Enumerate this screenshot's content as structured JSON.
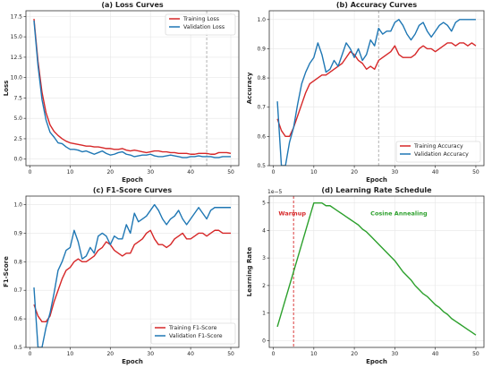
{
  "chart_data": [
    {
      "type": "line",
      "title": "(a) Loss Curves",
      "xlabel": "Epoch",
      "ylabel": "Loss",
      "xlim": [
        -1,
        52
      ],
      "ylim": [
        -0.8,
        18.2
      ],
      "xticks": [
        0,
        10,
        20,
        30,
        40,
        50
      ],
      "yticks": [
        0.0,
        2.5,
        5.0,
        7.5,
        10.0,
        12.5,
        15.0,
        17.5
      ],
      "ytick_decimals": 1,
      "grid": true,
      "legend_position": "top-right",
      "vline": 44,
      "x": [
        1,
        2,
        3,
        4,
        5,
        6,
        7,
        8,
        9,
        10,
        11,
        12,
        13,
        14,
        15,
        16,
        17,
        18,
        19,
        20,
        21,
        22,
        23,
        24,
        25,
        26,
        27,
        28,
        29,
        30,
        31,
        32,
        33,
        34,
        35,
        36,
        37,
        38,
        39,
        40,
        41,
        42,
        43,
        44,
        45,
        46,
        47,
        48,
        49,
        50
      ],
      "series": [
        {
          "name": "Training Loss",
          "color": "#d62728",
          "values": [
            17.2,
            12.0,
            8.2,
            5.7,
            4.2,
            3.4,
            2.9,
            2.5,
            2.2,
            2.0,
            1.9,
            1.8,
            1.7,
            1.6,
            1.6,
            1.5,
            1.5,
            1.4,
            1.3,
            1.3,
            1.2,
            1.2,
            1.3,
            1.1,
            1.0,
            1.1,
            1.0,
            0.9,
            0.8,
            0.9,
            1.0,
            1.0,
            0.9,
            0.9,
            0.8,
            0.8,
            0.7,
            0.7,
            0.7,
            0.6,
            0.6,
            0.7,
            0.7,
            0.7,
            0.6,
            0.6,
            0.8,
            0.8,
            0.8,
            0.7
          ]
        },
        {
          "name": "Validation Loss",
          "color": "#1f77b4",
          "values": [
            17.0,
            11.5,
            7.3,
            4.8,
            3.3,
            2.7,
            2.0,
            1.9,
            1.5,
            1.2,
            1.2,
            1.1,
            0.9,
            1.0,
            0.8,
            0.6,
            0.8,
            1.0,
            0.7,
            0.5,
            0.6,
            0.8,
            0.9,
            0.6,
            0.5,
            0.3,
            0.4,
            0.5,
            0.5,
            0.6,
            0.4,
            0.3,
            0.3,
            0.4,
            0.5,
            0.4,
            0.3,
            0.2,
            0.2,
            0.3,
            0.3,
            0.4,
            0.3,
            0.3,
            0.3,
            0.2,
            0.2,
            0.3,
            0.3,
            0.3
          ]
        }
      ]
    },
    {
      "type": "line",
      "title": "(b) Accuracy Curves",
      "xlabel": "Epoch",
      "ylabel": "Accuracy",
      "xlim": [
        -1,
        52
      ],
      "ylim": [
        0.5,
        1.03
      ],
      "xticks": [
        0,
        10,
        20,
        30,
        40,
        50
      ],
      "yticks": [
        0.5,
        0.6,
        0.7,
        0.8,
        0.9,
        1.0
      ],
      "ytick_decimals": 1,
      "grid": true,
      "legend_position": "bottom-right",
      "vline": 26,
      "x": [
        1,
        2,
        3,
        4,
        5,
        6,
        7,
        8,
        9,
        10,
        11,
        12,
        13,
        14,
        15,
        16,
        17,
        18,
        19,
        20,
        21,
        22,
        23,
        24,
        25,
        26,
        27,
        28,
        29,
        30,
        31,
        32,
        33,
        34,
        35,
        36,
        37,
        38,
        39,
        40,
        41,
        42,
        43,
        44,
        45,
        46,
        47,
        48,
        49,
        50
      ],
      "series": [
        {
          "name": "Training Accuracy",
          "color": "#d62728",
          "values": [
            0.66,
            0.62,
            0.6,
            0.6,
            0.63,
            0.67,
            0.71,
            0.75,
            0.78,
            0.79,
            0.8,
            0.81,
            0.81,
            0.82,
            0.83,
            0.84,
            0.85,
            0.87,
            0.89,
            0.88,
            0.86,
            0.85,
            0.83,
            0.84,
            0.83,
            0.86,
            0.87,
            0.88,
            0.89,
            0.91,
            0.88,
            0.87,
            0.87,
            0.87,
            0.88,
            0.9,
            0.91,
            0.9,
            0.9,
            0.89,
            0.9,
            0.91,
            0.92,
            0.92,
            0.91,
            0.92,
            0.92,
            0.91,
            0.92,
            0.91
          ]
        },
        {
          "name": "Validation Accuracy",
          "color": "#1f77b4",
          "values": [
            0.72,
            0.5,
            0.5,
            0.58,
            0.63,
            0.71,
            0.78,
            0.82,
            0.85,
            0.87,
            0.92,
            0.88,
            0.82,
            0.83,
            0.86,
            0.84,
            0.88,
            0.92,
            0.9,
            0.87,
            0.9,
            0.86,
            0.88,
            0.93,
            0.91,
            0.97,
            0.95,
            0.96,
            0.96,
            0.99,
            1.0,
            0.98,
            0.95,
            0.93,
            0.95,
            0.98,
            0.99,
            0.96,
            0.94,
            0.96,
            0.98,
            0.99,
            0.98,
            0.96,
            0.99,
            1.0,
            1.0,
            1.0,
            1.0,
            1.0
          ]
        }
      ]
    },
    {
      "type": "line",
      "title": "(c) F1-Score Curves",
      "xlabel": "Epoch",
      "ylabel": "F1-Score",
      "xlim": [
        -1,
        52
      ],
      "ylim": [
        0.5,
        1.03
      ],
      "xticks": [
        0,
        10,
        20,
        30,
        40,
        50
      ],
      "yticks": [
        0.5,
        0.6,
        0.7,
        0.8,
        0.9,
        1.0
      ],
      "ytick_decimals": 1,
      "grid": true,
      "legend_position": "bottom-right",
      "x": [
        1,
        2,
        3,
        4,
        5,
        6,
        7,
        8,
        9,
        10,
        11,
        12,
        13,
        14,
        15,
        16,
        17,
        18,
        19,
        20,
        21,
        22,
        23,
        24,
        25,
        26,
        27,
        28,
        29,
        30,
        31,
        32,
        33,
        34,
        35,
        36,
        37,
        38,
        39,
        40,
        41,
        42,
        43,
        44,
        45,
        46,
        47,
        48,
        49,
        50
      ],
      "series": [
        {
          "name": "Training F1-Score",
          "color": "#d62728",
          "values": [
            0.65,
            0.61,
            0.59,
            0.59,
            0.61,
            0.66,
            0.7,
            0.74,
            0.77,
            0.78,
            0.8,
            0.81,
            0.8,
            0.8,
            0.81,
            0.82,
            0.84,
            0.85,
            0.87,
            0.86,
            0.84,
            0.83,
            0.82,
            0.83,
            0.83,
            0.86,
            0.87,
            0.88,
            0.9,
            0.91,
            0.88,
            0.86,
            0.86,
            0.85,
            0.86,
            0.88,
            0.89,
            0.9,
            0.88,
            0.88,
            0.89,
            0.9,
            0.9,
            0.89,
            0.9,
            0.91,
            0.91,
            0.9,
            0.9,
            0.9
          ]
        },
        {
          "name": "Validation F1-Score",
          "color": "#1f77b4",
          "values": [
            0.71,
            0.5,
            0.5,
            0.57,
            0.62,
            0.69,
            0.77,
            0.8,
            0.84,
            0.85,
            0.91,
            0.87,
            0.81,
            0.82,
            0.85,
            0.83,
            0.89,
            0.9,
            0.89,
            0.86,
            0.89,
            0.88,
            0.88,
            0.93,
            0.9,
            0.97,
            0.94,
            0.95,
            0.96,
            0.98,
            1.0,
            0.98,
            0.95,
            0.93,
            0.95,
            0.96,
            0.98,
            0.95,
            0.93,
            0.95,
            0.97,
            0.99,
            0.97,
            0.95,
            0.98,
            0.99,
            0.99,
            0.99,
            0.99,
            0.99
          ]
        }
      ]
    },
    {
      "type": "line",
      "title": "(d) Learning Rate Schedule",
      "xlabel": "Epoch",
      "ylabel": "Learning Rate",
      "scale_label": "1e−5",
      "xlim": [
        -1,
        52
      ],
      "ylim": [
        -0.25,
        5.25
      ],
      "xticks": [
        0,
        10,
        20,
        30,
        40,
        50
      ],
      "yticks": [
        0,
        1,
        2,
        3,
        4,
        5
      ],
      "ytick_decimals": 0,
      "grid": true,
      "vline": 5,
      "annotations": [
        {
          "text": "Warmup",
          "x": 1.3,
          "y": 4.55,
          "color": "#d62728",
          "anchor": "start"
        },
        {
          "text": "Cosine Annealing",
          "x": 31,
          "y": 4.55,
          "color": "#2ca02c",
          "anchor": "middle"
        }
      ],
      "x": [
        1,
        2,
        3,
        4,
        5,
        6,
        7,
        8,
        9,
        10,
        11,
        12,
        13,
        14,
        15,
        16,
        17,
        18,
        19,
        20,
        21,
        22,
        23,
        24,
        25,
        26,
        27,
        28,
        29,
        30,
        31,
        32,
        33,
        34,
        35,
        36,
        37,
        38,
        39,
        40,
        41,
        42,
        43,
        44,
        45,
        46,
        47,
        48,
        49,
        50
      ],
      "series": [
        {
          "name": "",
          "color": "#2ca02c",
          "values": [
            0.5,
            1.0,
            1.5,
            2.0,
            2.5,
            3.0,
            3.5,
            4.0,
            4.5,
            5.0,
            5.0,
            5.0,
            4.9,
            4.9,
            4.8,
            4.7,
            4.6,
            4.5,
            4.4,
            4.3,
            4.2,
            4.05,
            3.95,
            3.8,
            3.65,
            3.5,
            3.35,
            3.2,
            3.05,
            2.9,
            2.7,
            2.5,
            2.35,
            2.2,
            2.0,
            1.85,
            1.7,
            1.6,
            1.45,
            1.3,
            1.2,
            1.05,
            0.95,
            0.8,
            0.7,
            0.6,
            0.5,
            0.4,
            0.3,
            0.2
          ]
        }
      ]
    }
  ]
}
